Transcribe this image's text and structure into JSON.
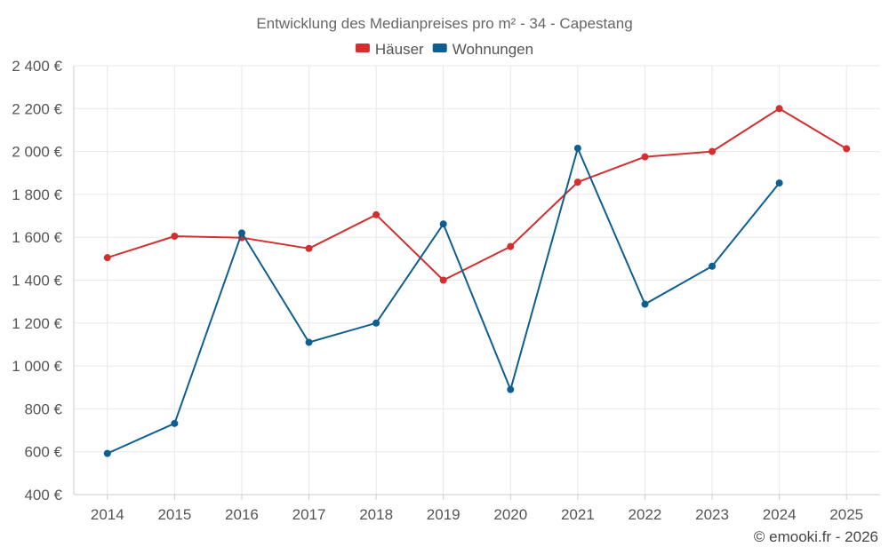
{
  "chart_data": {
    "type": "line",
    "title": "Entwicklung des Medianpreises pro m² - 34 - Capestang",
    "categories": [
      "2014",
      "2015",
      "2016",
      "2017",
      "2018",
      "2019",
      "2020",
      "2021",
      "2022",
      "2023",
      "2024",
      "2025"
    ],
    "series": [
      {
        "name": "Häuser",
        "color": "#d32f2f",
        "values": [
          1505,
          1605,
          1598,
          1548,
          1705,
          1400,
          1557,
          1857,
          1975,
          2000,
          2200,
          2013
        ]
      },
      {
        "name": "Wohnungen",
        "color": "#0d5f91",
        "values": [
          592,
          732,
          1620,
          1110,
          1200,
          1662,
          890,
          2015,
          1288,
          1465,
          1853,
          null
        ]
      }
    ],
    "ylim": [
      400,
      2400
    ],
    "yticks": [
      400,
      600,
      800,
      1000,
      1200,
      1400,
      1600,
      1800,
      2000,
      2200,
      2400
    ],
    "ytick_labels": [
      "400 €",
      "600 €",
      "800 €",
      "1 000 €",
      "1 200 €",
      "1 400 €",
      "1 600 €",
      "1 800 €",
      "2 000 €",
      "2 200 €",
      "2 400 €"
    ],
    "xlabel": "",
    "ylabel": "",
    "grid": true,
    "legend_position": "top-center"
  },
  "credit": "© emooki.fr - 2026"
}
